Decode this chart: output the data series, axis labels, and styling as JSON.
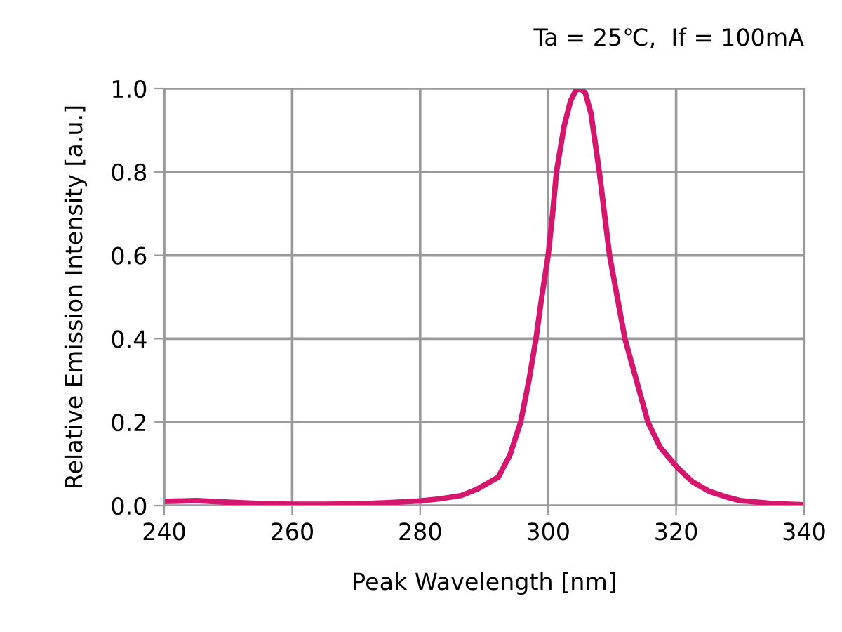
{
  "chart_data": {
    "type": "line",
    "title": "Ta = 25℃,  If = 100mA",
    "xlabel": "Peak Wavelength [nm]",
    "ylabel": "Relative Emission Intensity [a.u.]",
    "series": [
      {
        "color": "#d6156f",
        "x": [
          240,
          245,
          250,
          255,
          260,
          265,
          270,
          275,
          280,
          283,
          286.4,
          289,
          292.2,
          294,
          295.7,
          297,
          298.1,
          299,
          300,
          300.7,
          301.3,
          302.5,
          303.5,
          304.3,
          305,
          305.8,
          306.7,
          308,
          308.8,
          309.6,
          310.8,
          312,
          313.8,
          315.6,
          317.5,
          320.2,
          322.5,
          325.2,
          328,
          330,
          335,
          340
        ],
        "values": [
          0.01,
          0.012,
          0.008,
          0.005,
          0.003,
          0.003,
          0.004,
          0.007,
          0.011,
          0.016,
          0.024,
          0.04,
          0.068,
          0.12,
          0.2,
          0.3,
          0.4,
          0.5,
          0.6,
          0.7,
          0.8,
          0.91,
          0.97,
          0.995,
          1.0,
          0.99,
          0.94,
          0.8,
          0.7,
          0.6,
          0.5,
          0.4,
          0.3,
          0.2,
          0.14,
          0.091,
          0.058,
          0.034,
          0.02,
          0.012,
          0.005,
          0.002
        ]
      }
    ],
    "xlim": [
      240,
      340
    ],
    "xticks": [
      240,
      260,
      280,
      300,
      320,
      340
    ],
    "ylim": [
      0,
      1.0
    ],
    "yticks": [
      {
        "value": 0,
        "label": "0.0"
      },
      {
        "value": 0.2,
        "label": "0.2"
      },
      {
        "value": 0.4,
        "label": "0.4"
      },
      {
        "value": 0.6,
        "label": "0.6"
      },
      {
        "value": 0.8,
        "label": "0.8"
      },
      {
        "value": 1.0,
        "label": "1.0"
      }
    ],
    "grid": true,
    "marker": "none",
    "line_style": "solid"
  }
}
